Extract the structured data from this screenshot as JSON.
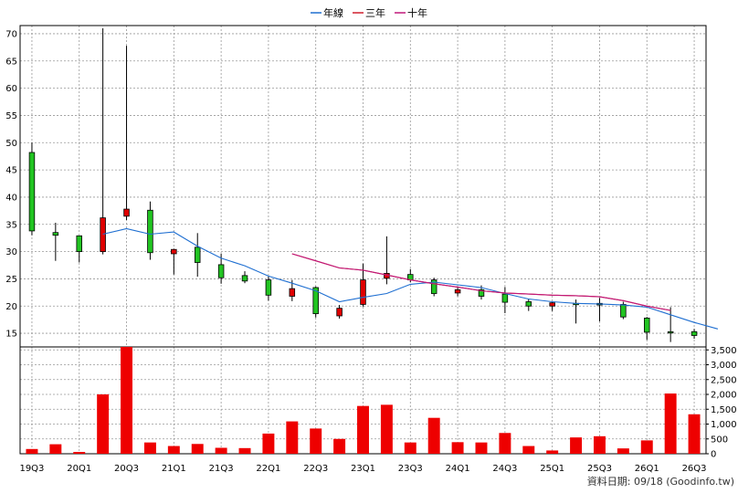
{
  "legend": {
    "items": [
      {
        "label": "年線",
        "color": "#1f6fd1"
      },
      {
        "label": "三年",
        "color": "#d11f2e"
      },
      {
        "label": "十年",
        "color": "#c0187a"
      }
    ]
  },
  "source": "資料日期: 09/18  (Goodinfo.tw)",
  "colors": {
    "up": "#e00000",
    "down": "#22c422",
    "volume": "#ee0000",
    "grid": "#999999"
  },
  "chart_data": [
    {
      "type": "candlestick",
      "ylim": [
        12.5,
        71.5
      ],
      "yticks": [
        15,
        20,
        25,
        30,
        35,
        40,
        45,
        50,
        55,
        60,
        65,
        70
      ],
      "xtick_labels": [
        "19Q3",
        "20Q1",
        "20Q3",
        "21Q1",
        "21Q3",
        "22Q1",
        "22Q3",
        "23Q1",
        "23Q3",
        "24Q1",
        "24Q3",
        "25Q1",
        "25Q3",
        "26Q1",
        "26Q3"
      ],
      "quarters": [
        "19Q3",
        "19Q4",
        "20Q1",
        "20Q2",
        "20Q3",
        "20Q4",
        "21Q1",
        "21Q2",
        "21Q3",
        "21Q4",
        "22Q1",
        "22Q2",
        "22Q3",
        "22Q4",
        "23Q1",
        "23Q2",
        "23Q3",
        "23Q4",
        "24Q1",
        "24Q2",
        "24Q3",
        "24Q4",
        "25Q1",
        "25Q2",
        "25Q3",
        "25Q4",
        "26Q1",
        "26Q2",
        "26Q3"
      ],
      "ohlc": [
        {
          "o": 48.2,
          "h": 50.0,
          "l": 33.0,
          "c": 33.8
        },
        {
          "o": 33.5,
          "h": 35.3,
          "l": 28.3,
          "c": 33.0
        },
        {
          "o": 32.9,
          "h": 32.9,
          "l": 28.0,
          "c": 30.0
        },
        {
          "o": 30.0,
          "h": 71.0,
          "l": 29.5,
          "c": 36.2
        },
        {
          "o": 36.5,
          "h": 67.8,
          "l": 35.8,
          "c": 37.8
        },
        {
          "o": 37.6,
          "h": 39.2,
          "l": 28.5,
          "c": 29.8
        },
        {
          "o": 29.6,
          "h": 30.5,
          "l": 25.8,
          "c": 30.4
        },
        {
          "o": 30.8,
          "h": 33.4,
          "l": 25.4,
          "c": 28.0
        },
        {
          "o": 27.6,
          "h": 29.6,
          "l": 24.1,
          "c": 25.2
        },
        {
          "o": 25.6,
          "h": 26.4,
          "l": 24.2,
          "c": 24.6
        },
        {
          "o": 24.8,
          "h": 25.4,
          "l": 21.0,
          "c": 22.0
        },
        {
          "o": 21.8,
          "h": 24.8,
          "l": 20.9,
          "c": 23.2
        },
        {
          "o": 23.4,
          "h": 23.6,
          "l": 17.9,
          "c": 18.6
        },
        {
          "o": 18.2,
          "h": 20.2,
          "l": 17.7,
          "c": 19.6
        },
        {
          "o": 20.3,
          "h": 27.8,
          "l": 19.9,
          "c": 24.8
        },
        {
          "o": 25.1,
          "h": 32.8,
          "l": 24.0,
          "c": 26.0
        },
        {
          "o": 25.8,
          "h": 26.8,
          "l": 24.4,
          "c": 24.8
        },
        {
          "o": 24.8,
          "h": 25.2,
          "l": 21.8,
          "c": 22.3
        },
        {
          "o": 22.4,
          "h": 23.4,
          "l": 21.8,
          "c": 23.0
        },
        {
          "o": 23.0,
          "h": 23.8,
          "l": 21.2,
          "c": 21.8
        },
        {
          "o": 22.2,
          "h": 23.5,
          "l": 18.7,
          "c": 20.7
        },
        {
          "o": 20.8,
          "h": 21.3,
          "l": 19.1,
          "c": 20.0
        },
        {
          "o": 20.0,
          "h": 20.8,
          "l": 19.1,
          "c": 20.6
        },
        {
          "o": 20.5,
          "h": 21.2,
          "l": 16.8,
          "c": 20.3
        },
        {
          "o": 20.5,
          "h": 21.5,
          "l": 17.2,
          "c": 20.2
        },
        {
          "o": 20.3,
          "h": 20.8,
          "l": 17.6,
          "c": 18.0
        },
        {
          "o": 17.8,
          "h": 18.0,
          "l": 13.8,
          "c": 15.2
        },
        {
          "o": 15.3,
          "h": 19.8,
          "l": 13.4,
          "c": 15.1
        },
        {
          "o": 15.3,
          "h": 15.8,
          "l": 14.0,
          "c": 14.6
        }
      ],
      "series": [
        {
          "name": "年線",
          "color": "#1f6fd1",
          "start_index": 3,
          "values": [
            33.2,
            34.2,
            33.2,
            33.6,
            31.0,
            28.8,
            27.4,
            25.5,
            24.2,
            22.8,
            20.8,
            21.6,
            22.3,
            24.0,
            24.4,
            23.9,
            23.4,
            22.3,
            21.3,
            20.8,
            20.5,
            20.4,
            20.2,
            19.8,
            18.4,
            17.0,
            15.8
          ]
        },
        {
          "name": "三年",
          "color": "#d11f2e",
          "start_index": 11,
          "values": [
            29.6,
            28.3,
            27.0,
            26.6,
            25.7,
            24.8,
            24.1,
            23.5,
            22.8,
            22.4,
            22.2,
            22.0,
            21.9,
            21.7,
            21.0,
            20.0,
            19.2
          ]
        },
        {
          "name": "十年",
          "color": "#c0187a",
          "start_index": 11,
          "values": [
            29.6,
            28.3,
            27.0,
            26.6,
            25.7,
            24.8,
            24.1,
            23.5,
            22.8,
            22.4,
            22.2,
            22.0,
            21.9,
            21.7,
            21.0,
            20.0,
            19.2
          ]
        }
      ]
    },
    {
      "type": "bar",
      "ylim": [
        0,
        3600
      ],
      "yticks": [
        0,
        500,
        1000,
        1500,
        2000,
        2500,
        3000,
        3500
      ],
      "ytick_labels": [
        "0",
        "500",
        "1,000",
        "1,500",
        "2,000",
        "2,500",
        "3,000",
        "3,500"
      ],
      "categories": [
        "19Q3",
        "19Q4",
        "20Q1",
        "20Q2",
        "20Q3",
        "20Q4",
        "21Q1",
        "21Q2",
        "21Q3",
        "21Q4",
        "22Q1",
        "22Q2",
        "22Q3",
        "22Q4",
        "23Q1",
        "23Q2",
        "23Q3",
        "23Q4",
        "24Q1",
        "24Q2",
        "24Q3",
        "24Q4",
        "25Q1",
        "25Q2",
        "25Q3",
        "25Q4",
        "26Q1",
        "26Q2",
        "26Q3"
      ],
      "values": [
        160,
        320,
        60,
        2000,
        3600,
        380,
        260,
        330,
        200,
        190,
        680,
        1090,
        850,
        500,
        1610,
        1650,
        380,
        1210,
        390,
        380,
        700,
        260,
        110,
        550,
        590,
        180,
        450,
        2030,
        1330
      ]
    }
  ]
}
